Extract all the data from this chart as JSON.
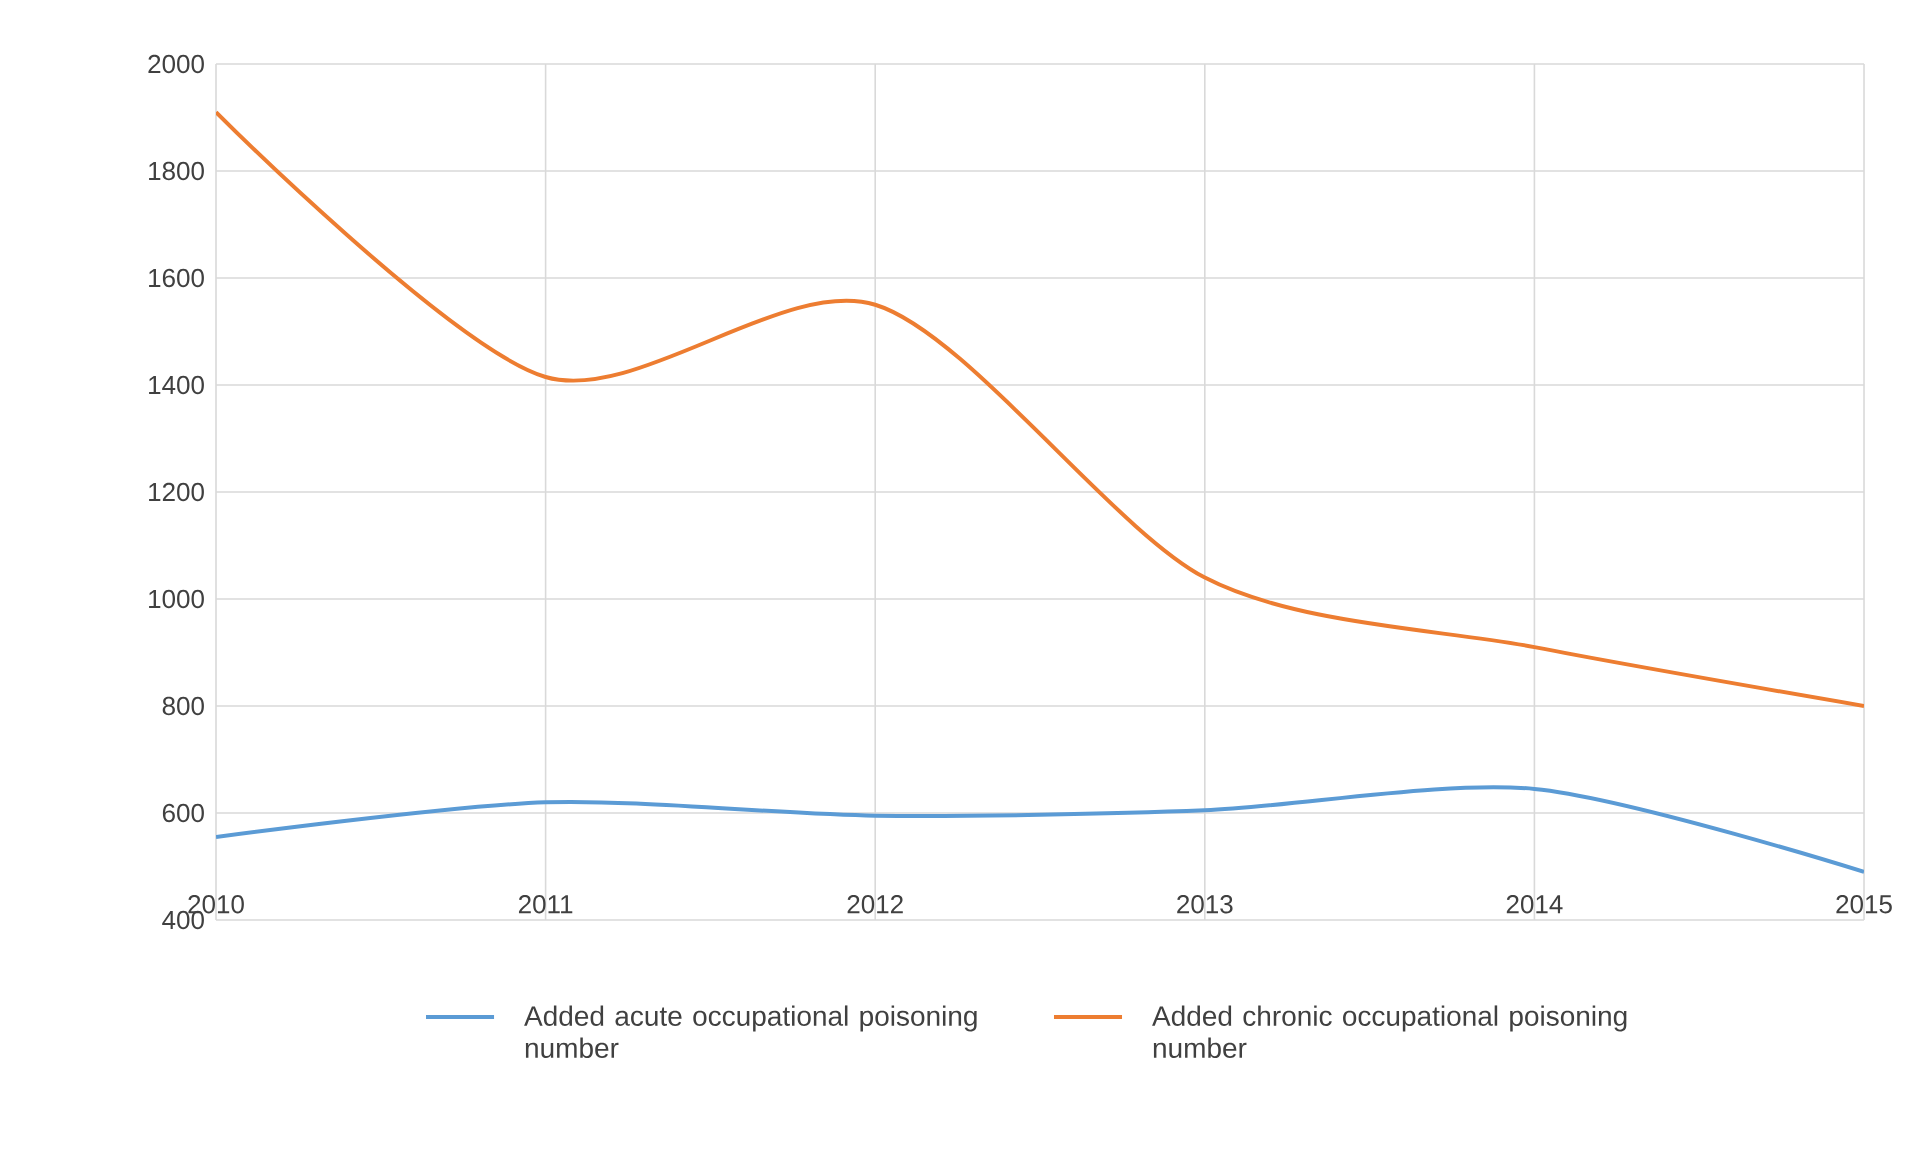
{
  "chart_data": {
    "type": "line",
    "x": [
      2010,
      2011,
      2012,
      2013,
      2014,
      2015
    ],
    "series": [
      {
        "name": "Added acute occupational poisoning number",
        "color": "#5b9bd5",
        "values": [
          555,
          620,
          595,
          605,
          645,
          490
        ]
      },
      {
        "name": "Added chronic occupational poisoning number",
        "color": "#ed7d31",
        "values": [
          1910,
          1415,
          1550,
          1040,
          910,
          800
        ]
      }
    ],
    "xlim": [
      2010,
      2015
    ],
    "xticks": [
      2010,
      2011,
      2012,
      2013,
      2014,
      2015
    ],
    "ylim": [
      400,
      2000
    ],
    "yticks": [
      400,
      600,
      800,
      1000,
      1200,
      1400,
      1600,
      1800,
      2000
    ],
    "grid": true,
    "legend": "bottom",
    "marker": "none",
    "line_style": "solid"
  }
}
